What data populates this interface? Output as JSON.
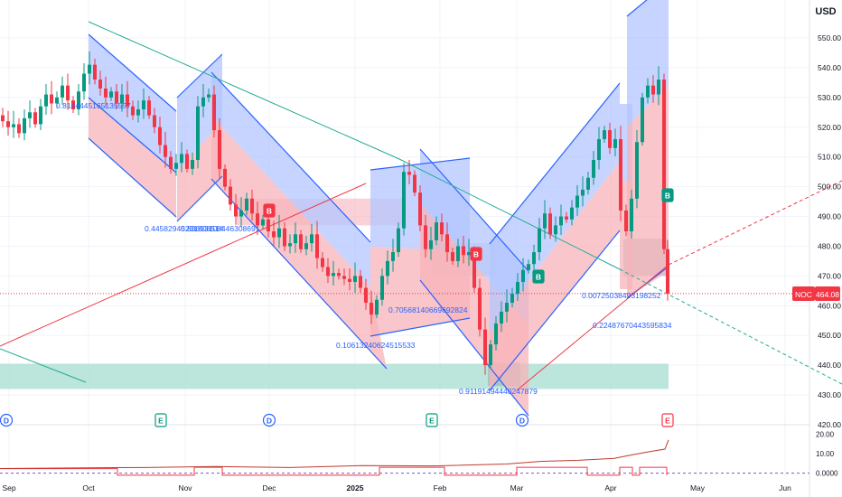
{
  "currency": "USD",
  "symbol": {
    "ticker": "NOC",
    "last_price": "464.08"
  },
  "colors": {
    "up": "#089981",
    "down": "#f23645",
    "accent_blue": "#2962ff",
    "channel_blue_fill": "#b3c6ff",
    "channel_red_fill": "#f7b3ba",
    "teal_zone": "#9fdccd",
    "grid": "#f0f3fa",
    "axis_text": "#131722",
    "indicator_line": "#c0392b",
    "dashed_red": "#f23645",
    "dashed_teal": "#22ab94"
  },
  "chart_data": {
    "type": "candlestick",
    "y_axis": {
      "ticks": [
        420,
        430,
        440,
        450,
        460,
        470,
        480,
        490,
        500,
        510,
        520,
        530,
        540,
        550
      ],
      "range": [
        416,
        557
      ]
    },
    "x_axis": {
      "labels": [
        "Sep",
        "Oct",
        "Nov",
        "Dec",
        "2025",
        "Feb",
        "Mar",
        "Apr",
        "May",
        "Jun"
      ]
    },
    "price_path": [
      [
        0,
        524
      ],
      [
        6,
        522
      ],
      [
        12,
        520
      ],
      [
        18,
        521
      ],
      [
        24,
        518
      ],
      [
        30,
        523
      ],
      [
        36,
        525
      ],
      [
        42,
        521
      ],
      [
        48,
        527
      ],
      [
        54,
        531
      ],
      [
        60,
        528
      ],
      [
        66,
        530
      ],
      [
        72,
        534
      ],
      [
        78,
        529
      ],
      [
        84,
        526
      ],
      [
        90,
        532
      ],
      [
        96,
        538
      ],
      [
        102,
        541
      ],
      [
        108,
        536
      ],
      [
        114,
        533
      ],
      [
        120,
        530
      ],
      [
        126,
        532
      ],
      [
        132,
        528
      ],
      [
        138,
        531
      ],
      [
        144,
        527
      ],
      [
        150,
        524
      ],
      [
        156,
        526
      ],
      [
        162,
        529
      ],
      [
        168,
        524
      ],
      [
        174,
        520
      ],
      [
        180,
        514
      ],
      [
        186,
        510
      ],
      [
        192,
        506
      ],
      [
        198,
        508
      ],
      [
        204,
        511
      ],
      [
        210,
        506
      ],
      [
        216,
        509
      ],
      [
        222,
        527
      ],
      [
        228,
        530
      ],
      [
        234,
        531
      ],
      [
        240,
        519
      ],
      [
        246,
        506
      ],
      [
        252,
        500
      ],
      [
        258,
        494
      ],
      [
        264,
        490
      ],
      [
        270,
        492
      ],
      [
        276,
        496
      ],
      [
        282,
        491
      ],
      [
        288,
        487
      ],
      [
        294,
        489
      ],
      [
        300,
        485
      ],
      [
        306,
        483
      ],
      [
        312,
        486
      ],
      [
        318,
        480
      ],
      [
        324,
        481
      ],
      [
        330,
        484
      ],
      [
        336,
        479
      ],
      [
        342,
        481
      ],
      [
        348,
        484
      ],
      [
        354,
        476
      ],
      [
        360,
        473
      ],
      [
        366,
        470
      ],
      [
        372,
        471
      ],
      [
        378,
        470
      ],
      [
        384,
        469
      ],
      [
        390,
        468
      ],
      [
        396,
        470
      ],
      [
        402,
        466
      ],
      [
        408,
        461
      ],
      [
        414,
        457
      ],
      [
        420,
        462
      ],
      [
        426,
        470
      ],
      [
        432,
        475
      ],
      [
        438,
        478
      ],
      [
        444,
        486
      ],
      [
        450,
        505
      ],
      [
        456,
        504
      ],
      [
        462,
        498
      ],
      [
        468,
        487
      ],
      [
        474,
        479
      ],
      [
        480,
        482
      ],
      [
        486,
        488
      ],
      [
        492,
        484
      ],
      [
        498,
        478
      ],
      [
        504,
        475
      ],
      [
        510,
        480
      ],
      [
        516,
        477
      ],
      [
        522,
        478
      ],
      [
        528,
        466
      ],
      [
        534,
        452
      ],
      [
        540,
        440
      ],
      [
        546,
        447
      ],
      [
        552,
        454
      ],
      [
        558,
        458
      ],
      [
        564,
        461
      ],
      [
        570,
        464
      ],
      [
        576,
        468
      ],
      [
        582,
        472
      ],
      [
        588,
        474
      ],
      [
        594,
        478
      ],
      [
        600,
        486
      ],
      [
        606,
        491
      ],
      [
        612,
        484
      ],
      [
        618,
        487
      ],
      [
        624,
        490
      ],
      [
        630,
        489
      ],
      [
        636,
        493
      ],
      [
        642,
        497
      ],
      [
        648,
        499
      ],
      [
        654,
        503
      ],
      [
        660,
        509
      ],
      [
        666,
        516
      ],
      [
        672,
        519
      ],
      [
        678,
        513
      ],
      [
        684,
        516
      ],
      [
        690,
        492
      ],
      [
        696,
        485
      ],
      [
        702,
        496
      ],
      [
        708,
        515
      ],
      [
        714,
        530
      ],
      [
        720,
        534
      ],
      [
        726,
        531
      ],
      [
        732,
        536
      ],
      [
        738,
        479
      ],
      [
        740,
        464.08
      ]
    ],
    "indicator": {
      "levels": [
        "20.00",
        "10.00",
        "0.0000"
      ],
      "range": [
        -2,
        22
      ],
      "series": [
        [
          0,
          2.4
        ],
        [
          80,
          2.7
        ],
        [
          160,
          2.9
        ],
        [
          240,
          3.4
        ],
        [
          320,
          2.9
        ],
        [
          400,
          3.9
        ],
        [
          480,
          3.7
        ],
        [
          560,
          4.7
        ],
        [
          600,
          6.1
        ],
        [
          640,
          6.6
        ],
        [
          680,
          7.6
        ],
        [
          700,
          9.4
        ],
        [
          720,
          11.1
        ],
        [
          736,
          12.3
        ],
        [
          740,
          17
        ]
      ],
      "step": [
        [
          0,
          2.3
        ],
        [
          130,
          2.3
        ],
        [
          130,
          -1
        ],
        [
          215,
          -1
        ],
        [
          215,
          3
        ],
        [
          246,
          3
        ],
        [
          246,
          -1
        ],
        [
          420,
          -1
        ],
        [
          420,
          3
        ],
        [
          492,
          3
        ],
        [
          492,
          -1
        ],
        [
          572,
          -1
        ],
        [
          572,
          3
        ],
        [
          650,
          3
        ],
        [
          650,
          -1
        ],
        [
          686,
          -1
        ],
        [
          686,
          3
        ],
        [
          700,
          3
        ],
        [
          700,
          -1
        ],
        [
          708,
          -1
        ],
        [
          708,
          3
        ],
        [
          738,
          3
        ],
        [
          738,
          -1
        ]
      ]
    },
    "channel_labels": [
      "0.8144445165135557",
      "0.44582945231808514",
      "0.83693108446308691",
      "0.10613240624515533",
      "0.70568140669692824",
      "0.91191494440247879",
      "0.00725038493198252",
      "0.22487670443595834"
    ],
    "markers": [
      {
        "text": "B",
        "kind": "buy"
      },
      {
        "text": "B",
        "kind": "buy"
      },
      {
        "text": "B",
        "kind": "sell"
      },
      {
        "text": "B",
        "kind": "sell"
      },
      {
        "text": "D",
        "kind": "dividend"
      },
      {
        "text": "E",
        "kind": "earnings"
      },
      {
        "text": "D",
        "kind": "dividend"
      },
      {
        "text": "E",
        "kind": "earnings"
      },
      {
        "text": "D",
        "kind": "dividend"
      },
      {
        "text": "E",
        "kind": "earnings-upcoming"
      }
    ],
    "grid": true,
    "legend": "none"
  }
}
